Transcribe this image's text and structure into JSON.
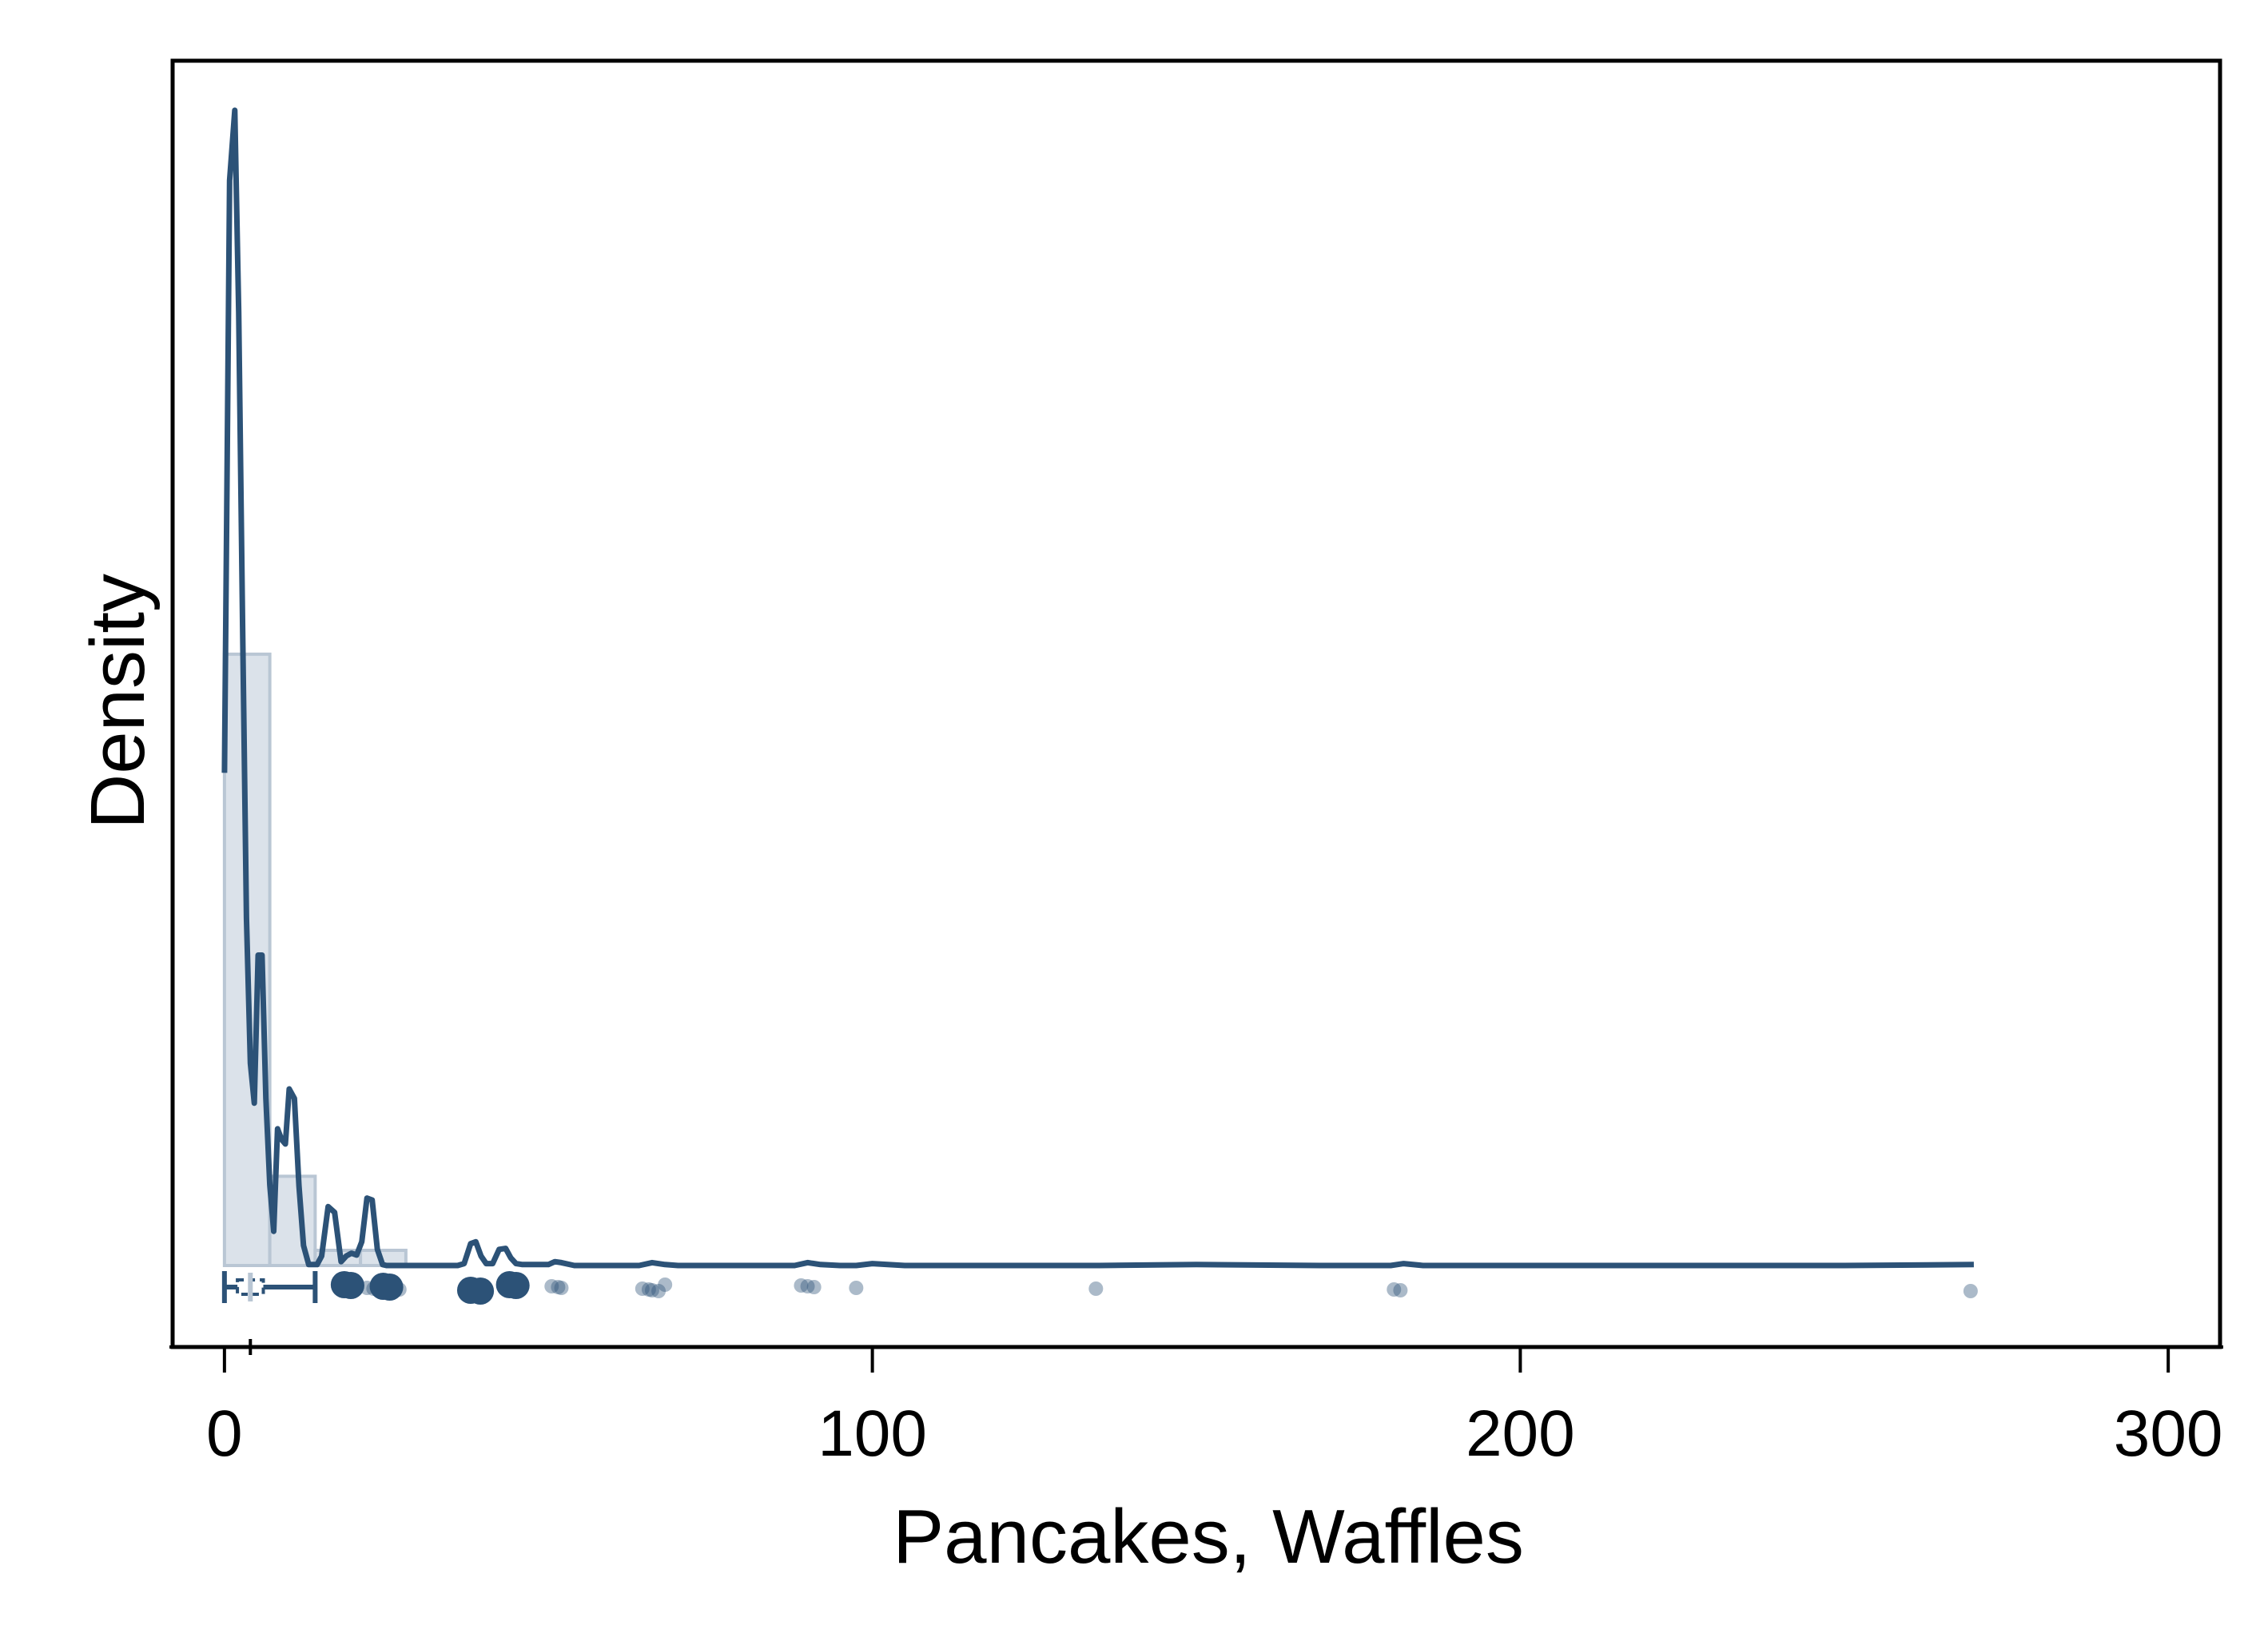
{
  "chart_data": {
    "type": "histogram-density",
    "xlabel": "Pancakes, Waffles",
    "ylabel": "Density",
    "xlim": [
      -8,
      308
    ],
    "x_ticks": [
      0,
      100,
      200,
      300
    ],
    "x_tick_labels": [
      "0",
      "100",
      "200",
      "300"
    ],
    "y_ticks_shown": false,
    "grid": false,
    "colors": {
      "line": "#2c5277",
      "bar_fill": "#dbe2ea",
      "bar_stroke": "#b9c6d4",
      "points": "#2c5277",
      "frame": "#000000"
    },
    "histogram": {
      "bin_edges": [
        0,
        7,
        14,
        21,
        28
      ],
      "heights": [
        0.0644,
        0.0094,
        0.0016,
        0.0016
      ]
    },
    "density_curve": {
      "x": [
        0,
        0.8,
        1.6,
        2.2,
        2.8,
        3.4,
        4,
        4.6,
        5.2,
        5.8,
        6.4,
        7,
        7.6,
        8.2,
        8.8,
        9.4,
        10,
        10.8,
        11.5,
        12.2,
        13,
        13.7,
        14.3,
        15,
        16,
        17,
        18,
        18.8,
        19.6,
        20.4,
        21.2,
        22,
        22.8,
        23.6,
        24.4,
        25,
        25.8,
        26.6,
        27.4,
        28.4,
        30,
        32,
        34,
        36,
        37,
        38,
        38.8,
        39.6,
        40.4,
        41.4,
        42.4,
        43.4,
        44.2,
        45,
        46,
        48,
        50,
        51,
        52,
        54,
        58,
        62,
        64,
        66,
        68,
        70,
        75,
        85,
        88,
        90,
        92,
        95,
        97.5,
        100,
        105,
        120,
        135,
        150,
        170,
        180,
        182,
        185,
        200,
        220,
        250,
        270
      ],
      "y": [
        0.0519,
        0.1143,
        0.1217,
        0.1004,
        0.0672,
        0.0366,
        0.0213,
        0.0171,
        0.0327,
        0.0327,
        0.0176,
        0.0085,
        0.0036,
        0.0144,
        0.0133,
        0.0128,
        0.0186,
        0.0176,
        0.0084,
        0.0021,
        0.0001,
        0.0001,
        0.0001,
        0.001,
        0.0062,
        0.0056,
        0.0004,
        0.001,
        0.0013,
        0.0011,
        0.0025,
        0.0071,
        0.0069,
        0.0017,
        0.0001,
        0,
        0,
        0,
        0,
        0,
        0,
        0,
        0,
        0,
        0.0002,
        0.0023,
        0.0025,
        0.001,
        0.0002,
        0.0002,
        0.0017,
        0.0018,
        0.0008,
        0.0002,
        0.0001,
        0.0001,
        0.0001,
        0.0004,
        0.0003,
        0,
        0,
        0,
        0,
        0.0003,
        0.0001,
        0,
        0,
        0,
        0,
        0.0003,
        0.0001,
        0,
        0,
        0.0002,
        0,
        0,
        0,
        0.0001,
        0,
        0,
        0.0002,
        0,
        0,
        0,
        0,
        0.0001
      ]
    },
    "boxplot": {
      "min": 0,
      "q1": 2,
      "median": 4,
      "q3": 6,
      "whisker_high": 14
    },
    "points": [
      {
        "x": 18.5,
        "size": "large"
      },
      {
        "x": 19.5,
        "size": "large"
      },
      {
        "x": 24.5,
        "size": "large"
      },
      {
        "x": 25.5,
        "size": "large"
      },
      {
        "x": 22,
        "size": "small"
      },
      {
        "x": 23,
        "size": "small"
      },
      {
        "x": 27,
        "size": "small"
      },
      {
        "x": 38,
        "size": "large"
      },
      {
        "x": 39.5,
        "size": "large"
      },
      {
        "x": 44,
        "size": "large"
      },
      {
        "x": 45,
        "size": "large"
      },
      {
        "x": 50.5,
        "size": "small"
      },
      {
        "x": 51.5,
        "size": "small"
      },
      {
        "x": 52,
        "size": "small"
      },
      {
        "x": 64.5,
        "size": "small"
      },
      {
        "x": 65.5,
        "size": "small"
      },
      {
        "x": 66,
        "size": "small"
      },
      {
        "x": 67,
        "size": "small"
      },
      {
        "x": 68,
        "size": "small"
      },
      {
        "x": 89,
        "size": "small"
      },
      {
        "x": 90,
        "size": "small"
      },
      {
        "x": 91,
        "size": "small"
      },
      {
        "x": 97.5,
        "size": "small"
      },
      {
        "x": 134.5,
        "size": "small"
      },
      {
        "x": 180.5,
        "size": "small"
      },
      {
        "x": 181.5,
        "size": "small"
      },
      {
        "x": 269.5,
        "size": "small"
      }
    ]
  }
}
